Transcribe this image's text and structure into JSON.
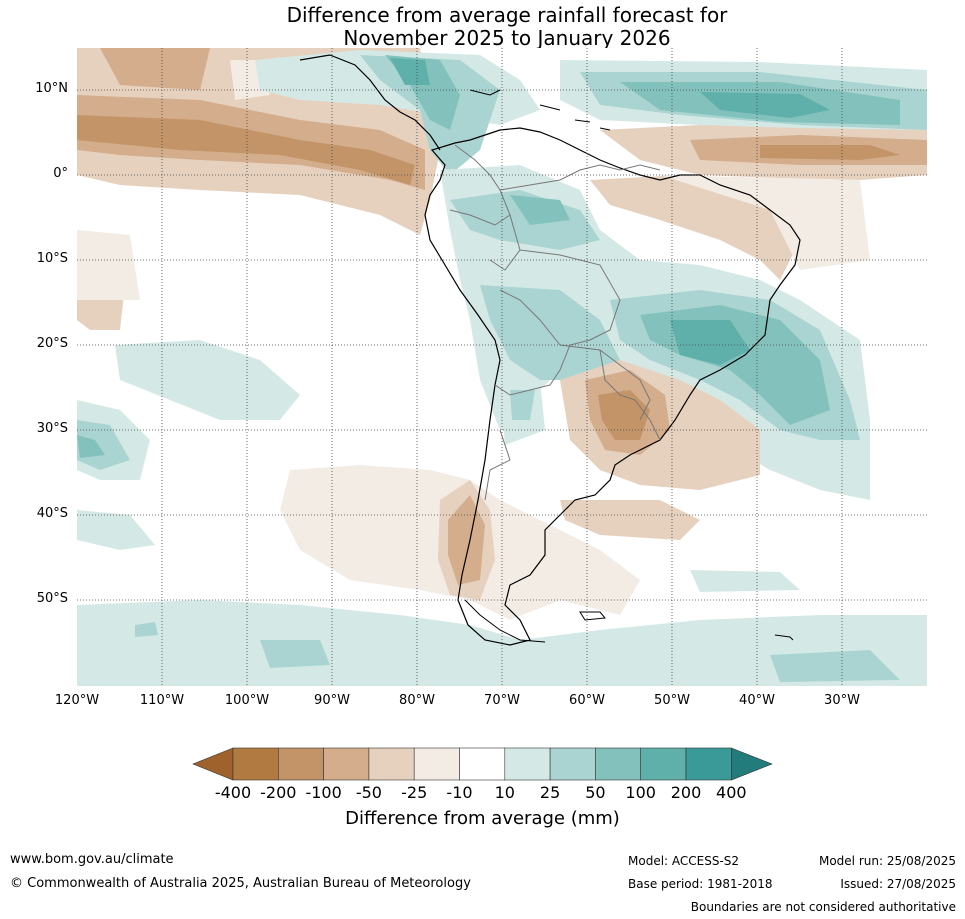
{
  "title_line1": "Difference from average rainfall forecast for",
  "title_line2": "November 2025 to January 2026",
  "lat_labels": [
    "10°N",
    "0°",
    "10°S",
    "20°S",
    "30°S",
    "40°S",
    "50°S"
  ],
  "lon_labels": [
    "120°W",
    "110°W",
    "100°W",
    "90°W",
    "80°W",
    "70°W",
    "60°W",
    "50°W",
    "40°W",
    "30°W"
  ],
  "colorbar": {
    "labels": [
      "-400",
      "-200",
      "-100",
      "-50",
      "-25",
      "-10",
      "10",
      "25",
      "50",
      "100",
      "200",
      "400"
    ],
    "colors": [
      "#a0622c",
      "#b07a40",
      "#c39467",
      "#d3ad8c",
      "#e6d1bf",
      "#f3ece5",
      "#ffffff",
      "#d4e9e6",
      "#aad4d1",
      "#83c1bc",
      "#5fafab",
      "#399a98",
      "#237c7c"
    ],
    "title": "Difference from average (mm)"
  },
  "footer": {
    "website": "www.bom.gov.au/climate",
    "copyright": "© Commonwealth of Australia 2025, Australian Bureau of Meteorology",
    "model": "Model: ACCESS-S2",
    "base_period": "Base period: 1981-2018",
    "model_run": "Model run: 25/08/2025",
    "issued": "Issued: 27/08/2025",
    "disclaimer": "Boundaries are not considered authoritative"
  }
}
